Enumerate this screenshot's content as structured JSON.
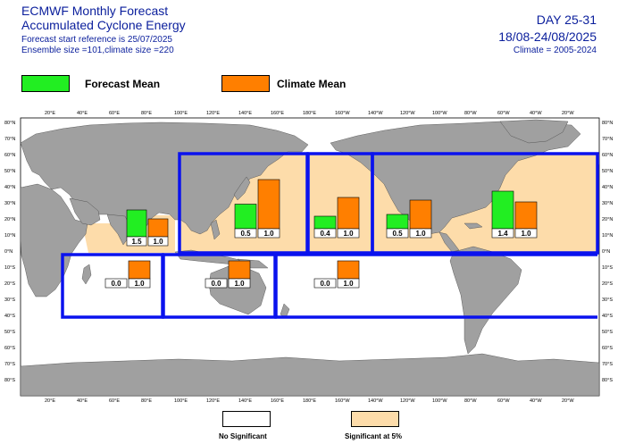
{
  "header": {
    "title_line1": "ECMWF Monthly Forecast",
    "title_line2": "Accumulated Cyclone Energy",
    "forecast_start": "Forecast start reference is 25/07/2025",
    "ensemble": "Ensemble size =101,climate size =220",
    "day_range": "DAY 25-31",
    "date_range": "18/08-24/08/2025",
    "climate_period": "Climate = 2005-2024"
  },
  "legend": {
    "forecast_label": "Forecast Mean",
    "climate_label": "Climate Mean",
    "forecast_color": "#22ee22",
    "climate_color": "#ff7f00"
  },
  "significance_legend": {
    "no_sig_label": "No Significant",
    "sig_label": "Significant at 5%",
    "sig_color": "#fddcaa"
  },
  "axes": {
    "lon_labels": [
      "20°E",
      "40°E",
      "60°E",
      "80°E",
      "100°E",
      "120°E",
      "140°E",
      "160°E",
      "180°E",
      "160°W",
      "140°W",
      "120°W",
      "100°W",
      "80°W",
      "60°W",
      "40°W",
      "20°W"
    ],
    "lat_labels_left": [
      "80°N",
      "70°N",
      "60°N",
      "50°N",
      "40°N",
      "30°N",
      "20°N",
      "10°N",
      "0°N",
      "10°S",
      "20°S",
      "30°S",
      "40°S",
      "50°S",
      "60°S",
      "70°S",
      "80°S"
    ],
    "lat_labels_right": [
      "80°N",
      "70°N",
      "60°N",
      "50°N",
      "40°N",
      "30°N",
      "20°N",
      "10°N",
      "0°N",
      "10°S",
      "20°S",
      "30°S",
      "40°S",
      "50°S",
      "60°S",
      "70°S",
      "80°S"
    ]
  },
  "basins": [
    {
      "name": "North Indian",
      "forecast": "1.5",
      "climate": "1.0",
      "significant": true
    },
    {
      "name": "Western North Pacific",
      "forecast": "0.5",
      "climate": "1.0",
      "significant": true
    },
    {
      "name": "Central North Pacific",
      "forecast": "0.4",
      "climate": "1.0",
      "significant": true
    },
    {
      "name": "Eastern North Pacific",
      "forecast": "0.5",
      "climate": "1.0",
      "significant": true
    },
    {
      "name": "North Atlantic",
      "forecast": "1.4",
      "climate": "1.0",
      "significant": true
    },
    {
      "name": "South-West Indian",
      "forecast": "0.0",
      "climate": "1.0",
      "significant": false
    },
    {
      "name": "Australian",
      "forecast": "0.0",
      "climate": "1.0",
      "significant": false
    },
    {
      "name": "South Pacific",
      "forecast": "0.0",
      "climate": "1.0",
      "significant": false
    }
  ],
  "colors": {
    "ocean": "#ffffff",
    "land": "#a0a0a0",
    "basin_border": "#0000ee",
    "significant_fill": "#fddcaa"
  }
}
